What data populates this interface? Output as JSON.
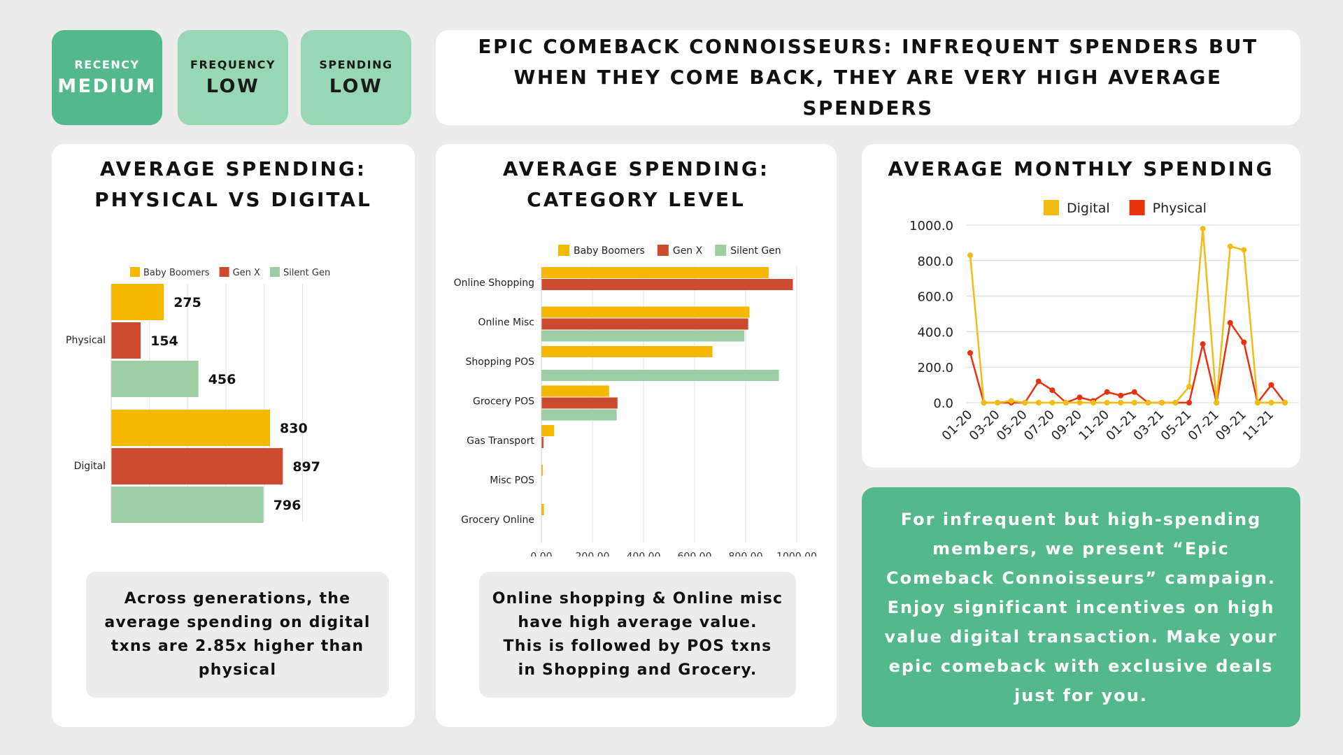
{
  "metrics": [
    {
      "label": "RECENCY",
      "value": "MEDIUM"
    },
    {
      "label": "FREQUENCY",
      "value": "LOW"
    },
    {
      "label": "SPENDING",
      "value": "LOW"
    }
  ],
  "headline": "EPIC COMEBACK CONNOISSEURS: INFREQUENT SPENDERS BUT WHEN THEY COME BACK, THEY ARE VERY HIGH AVERAGE SPENDERS",
  "panels": {
    "physical_digital": {
      "title_line1": "AVERAGE SPENDING:",
      "title_line2": "PHYSICAL VS DIGITAL",
      "note": "Across generations, the average spending on digital txns are 2.85x higher than physical"
    },
    "category": {
      "title_line1": "AVERAGE SPENDING:",
      "title_line2": "CATEGORY LEVEL",
      "note_line1": "Online shopping & Online misc have high average value.",
      "note_line2": "This is followed by POS txns in Shopping and Grocery."
    },
    "monthly": {
      "title": "AVERAGE MONTHLY SPENDING"
    }
  },
  "campaign": "For infrequent but high-spending members, we present “Epic Comeback Connoisseurs” campaign. Enjoy significant incentives on high value digital transaction. Make your epic comeback with exclusive deals just for you.",
  "colors": {
    "baby_boomers": "#f5b800",
    "gen_x": "#cc4a2f",
    "silent_gen": "#9dcea3",
    "digital": "#f1bd14",
    "physical": "#e8310f",
    "accent_green": "#54b98a",
    "light_green": "#98d7b3"
  },
  "chart_data": [
    {
      "type": "bar",
      "orientation": "horizontal",
      "categories": [
        "Physical",
        "Digital"
      ],
      "series": [
        {
          "name": "Baby Boomers",
          "values": [
            275,
            830
          ]
        },
        {
          "name": "Gen X",
          "values": [
            154,
            897
          ]
        },
        {
          "name": "Silent Gen",
          "values": [
            456,
            796
          ]
        }
      ],
      "data_labels": true,
      "legend": "top",
      "xlim": [
        0,
        1000
      ],
      "grid": true
    },
    {
      "type": "bar",
      "orientation": "horizontal",
      "categories": [
        "Online Shopping",
        "Online Misc",
        "Shopping POS",
        "Grocery POS",
        "Gas Transport",
        "Misc POS",
        "Grocery Online"
      ],
      "series": [
        {
          "name": "Baby Boomers",
          "values": [
            890,
            815,
            670,
            265,
            50,
            5,
            10
          ]
        },
        {
          "name": "Gen X",
          "values": [
            985,
            810,
            null,
            298,
            8,
            null,
            null
          ]
        },
        {
          "name": "Silent Gen",
          "values": [
            null,
            795,
            930,
            295,
            null,
            null,
            null
          ]
        }
      ],
      "xticks": [
        "0.00",
        "200.00",
        "400.00",
        "600.00",
        "800.00",
        "1000.00"
      ],
      "xlim": [
        0,
        1000
      ],
      "legend": "top",
      "grid": true
    },
    {
      "type": "line",
      "x": [
        "01-20",
        "02-20",
        "03-20",
        "04-20",
        "05-20",
        "06-20",
        "07-20",
        "08-20",
        "09-20",
        "10-20",
        "11-20",
        "12-20",
        "01-21",
        "02-21",
        "03-21",
        "04-21",
        "05-21",
        "06-21",
        "07-21",
        "08-21",
        "09-21",
        "10-21",
        "11-21",
        "12-21"
      ],
      "xticks": [
        "01-20",
        "03-20",
        "05-20",
        "07-20",
        "09-20",
        "11-20",
        "01-21",
        "03-21",
        "05-21",
        "07-21",
        "09-21",
        "11-21"
      ],
      "series": [
        {
          "name": "Digital",
          "values": [
            830,
            0,
            0,
            10,
            0,
            0,
            0,
            0,
            0,
            0,
            0,
            0,
            0,
            0,
            0,
            0,
            90,
            980,
            0,
            880,
            860,
            0,
            0,
            0
          ]
        },
        {
          "name": "Physical",
          "values": [
            280,
            0,
            0,
            0,
            0,
            120,
            70,
            0,
            30,
            10,
            60,
            40,
            60,
            0,
            0,
            0,
            0,
            330,
            0,
            450,
            340,
            0,
            100,
            0
          ]
        }
      ],
      "yticks": [
        "0.0",
        "200.0",
        "400.0",
        "600.0",
        "800.0",
        "1000.0"
      ],
      "ylim": [
        0,
        1000
      ],
      "legend": "top",
      "grid": true
    }
  ]
}
